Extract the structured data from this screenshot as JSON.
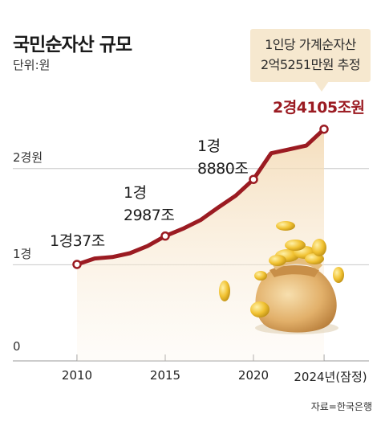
{
  "title": "국민순자산 규모",
  "unit_label": "단위:원",
  "callout": {
    "line1": "1인당 가계순자산",
    "line2": "2억5251만원 추정"
  },
  "source": "자료=한국은행",
  "colors": {
    "line": "#9b1b22",
    "area": "#f3d8b0",
    "grid": "#c8c8c8",
    "final_label": "#9b1b22"
  },
  "decoration": "gold-coin-money-bag",
  "chart_data": {
    "type": "line",
    "unit": "원",
    "x_ticks": [
      "2010",
      "2015",
      "2020",
      "2024년(잠정)"
    ],
    "y_ticks": [
      "0",
      "1경",
      "2경원"
    ],
    "ylim": [
      0,
      25000
    ],
    "series": [
      {
        "x": [
          2010,
          2011,
          2012,
          2013,
          2014,
          2015,
          2016,
          2017,
          2018,
          2019,
          2020,
          2021,
          2022,
          2023,
          2024
        ],
        "values": [
          10037,
          10650,
          10800,
          11200,
          11950,
          12987,
          13750,
          14650,
          15950,
          17200,
          18880,
          21600,
          22000,
          22400,
          24105
        ]
      }
    ],
    "annotations": [
      {
        "x": 2010,
        "lines": [
          "1경37조"
        ]
      },
      {
        "x": 2015,
        "lines": [
          "1경",
          "2987조"
        ]
      },
      {
        "x": 2020,
        "lines": [
          "1경",
          "8880조"
        ]
      },
      {
        "x": 2024,
        "lines": [
          "2경4105조원"
        ]
      }
    ]
  }
}
